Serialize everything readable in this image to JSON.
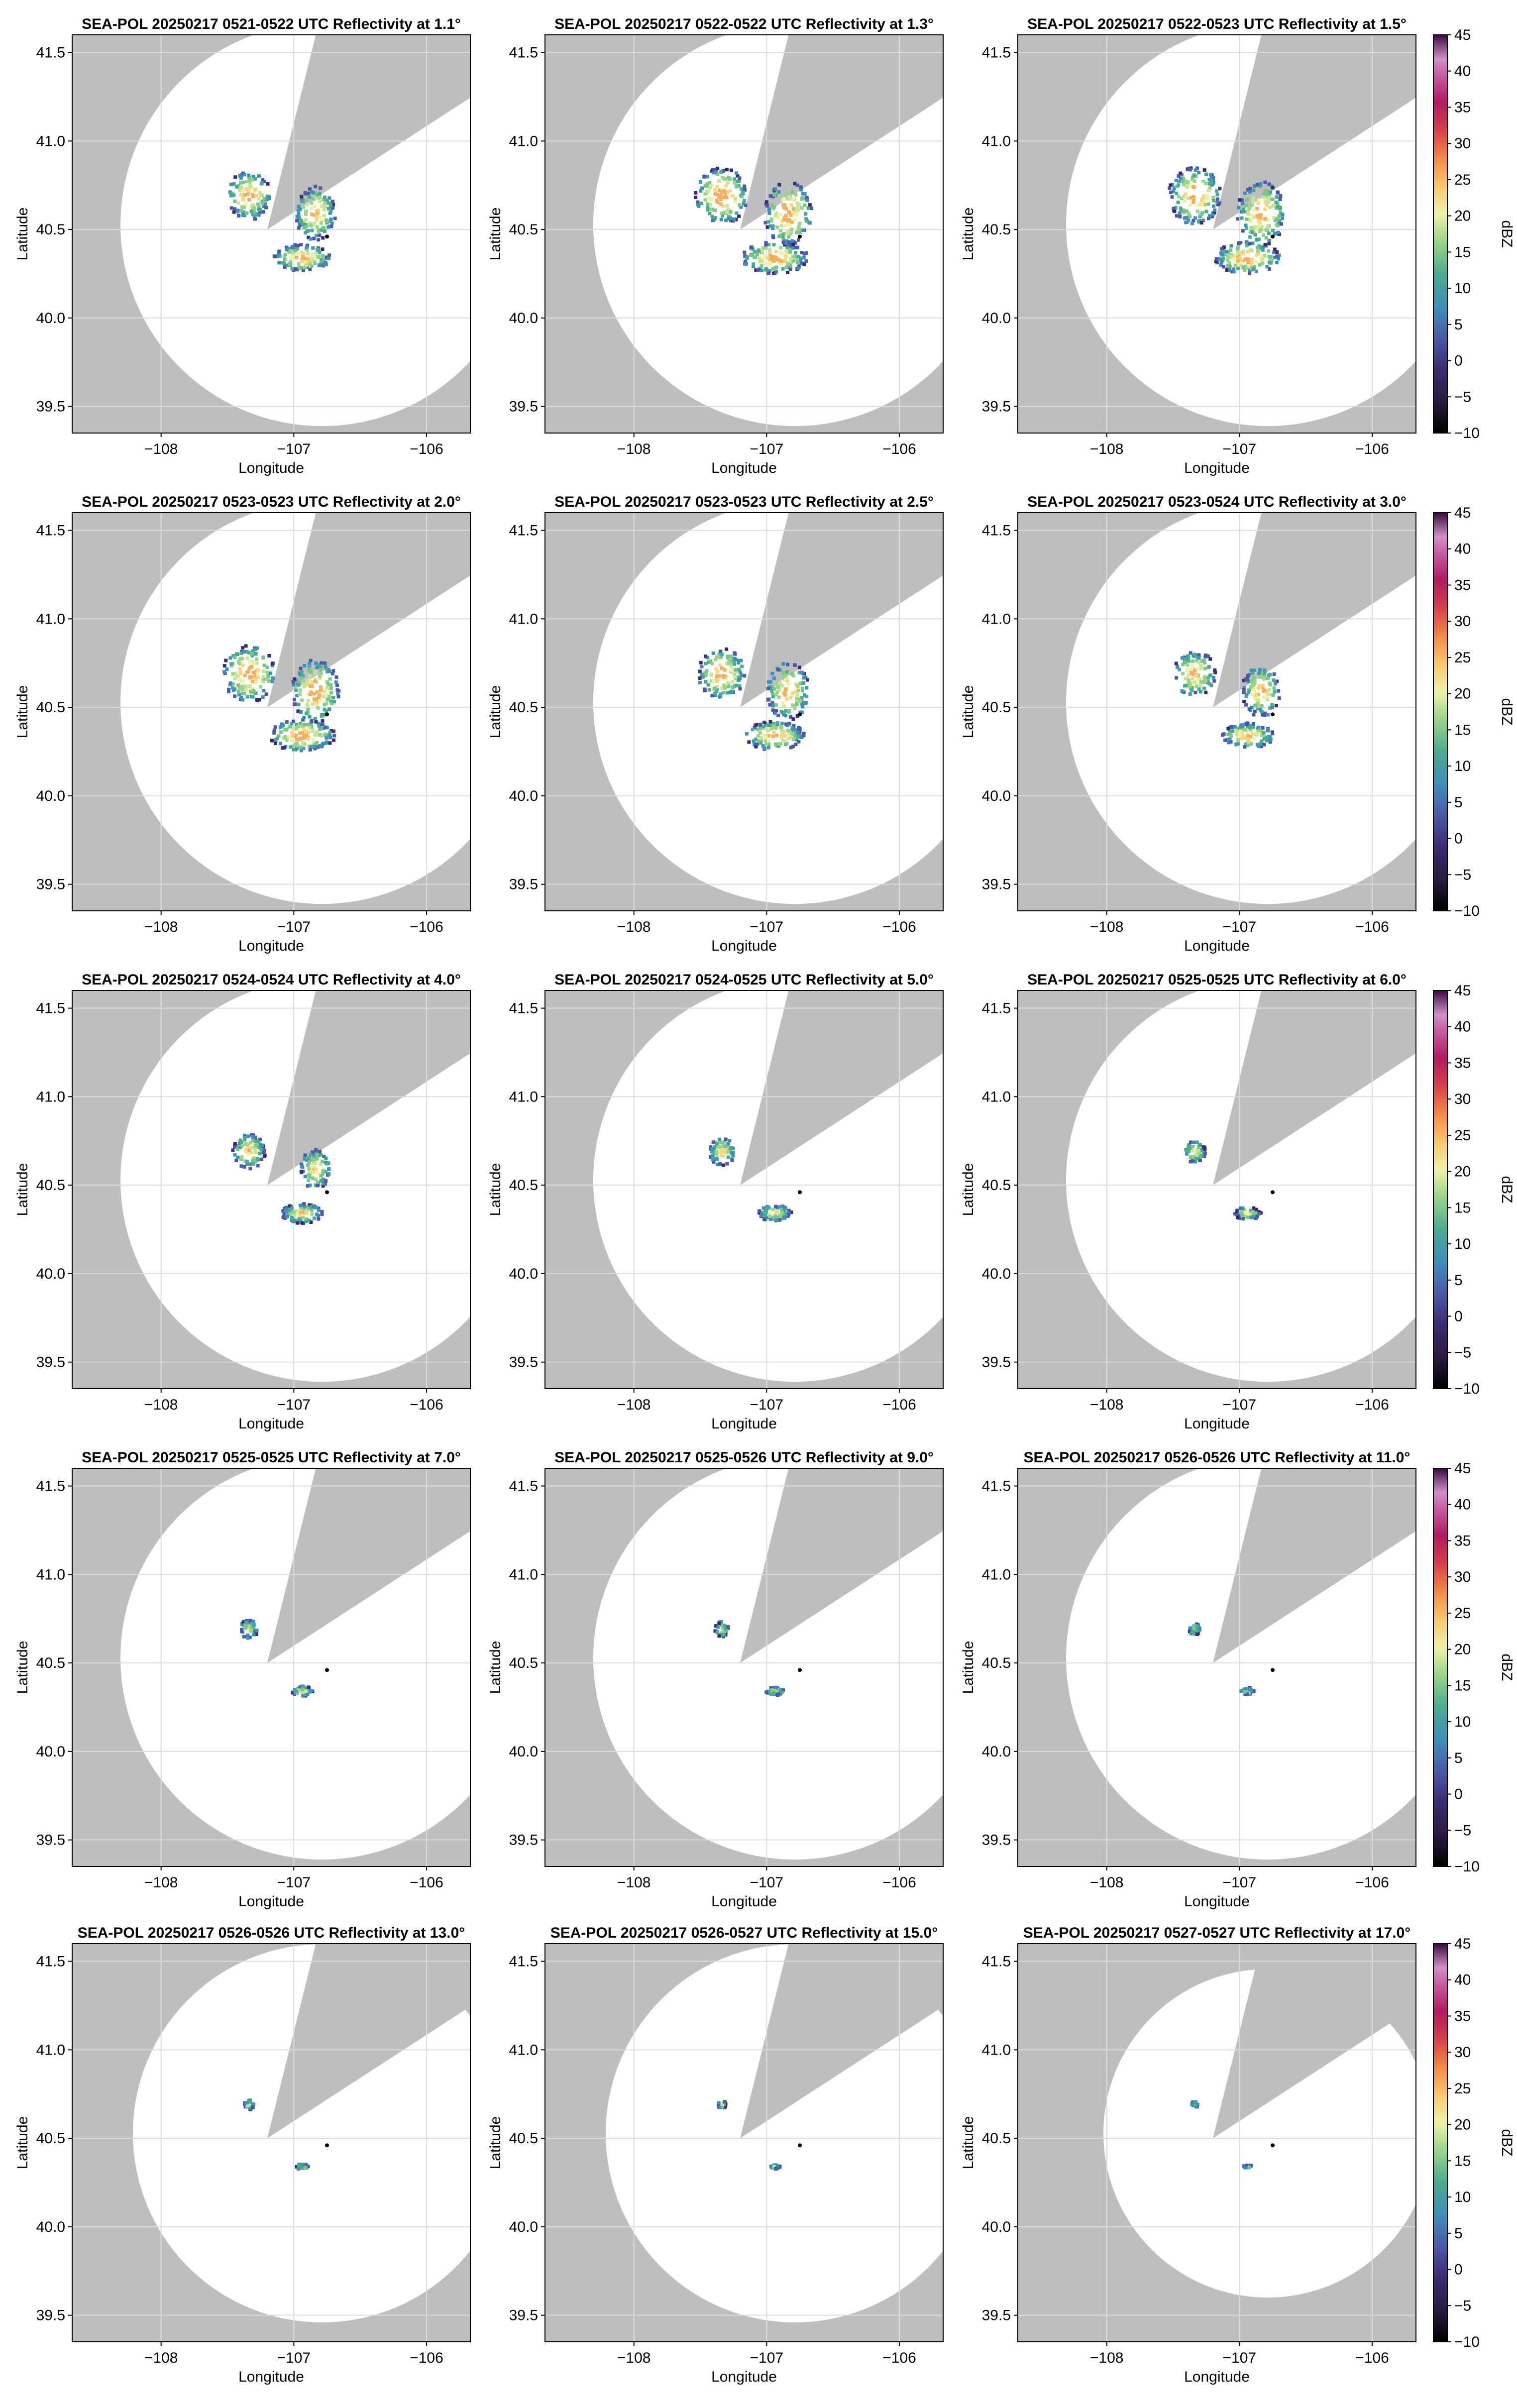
{
  "figure": {
    "panels": [
      {
        "title": "SEA-POL 20250217 0521-0522 UTC Reflectivity at 1.1°",
        "xlabel": "Longitude",
        "ylabel": "Latitude",
        "echo": 0.85
      },
      {
        "title": "SEA-POL 20250217 0522-0522 UTC Reflectivity at 1.3°",
        "xlabel": "Longitude",
        "ylabel": "Latitude",
        "echo": 1.0
      },
      {
        "title": "SEA-POL 20250217 0522-0523 UTC Reflectivity at 1.5°",
        "xlabel": "Longitude",
        "ylabel": "Latitude",
        "echo": 1.0
      },
      {
        "title": "SEA-POL 20250217 0523-0523 UTC Reflectivity at 2.0°",
        "xlabel": "Longitude",
        "ylabel": "Latitude",
        "echo": 1.0
      },
      {
        "title": "SEA-POL 20250217 0523-0523 UTC Reflectivity at 2.5°",
        "xlabel": "Longitude",
        "ylabel": "Latitude",
        "echo": 0.9
      },
      {
        "title": "SEA-POL 20250217 0523-0524 UTC Reflectivity at 3.0°",
        "xlabel": "Longitude",
        "ylabel": "Latitude",
        "echo": 0.8
      },
      {
        "title": "SEA-POL 20250217 0524-0524 UTC Reflectivity at 4.0°",
        "xlabel": "Longitude",
        "ylabel": "Latitude",
        "echo": 0.62
      },
      {
        "title": "SEA-POL 20250217 0524-0525 UTC Reflectivity at 5.0°",
        "xlabel": "Longitude",
        "ylabel": "Latitude",
        "echo": 0.5
      },
      {
        "title": "SEA-POL 20250217 0525-0525 UTC Reflectivity at 6.0°",
        "xlabel": "Longitude",
        "ylabel": "Latitude",
        "echo": 0.4
      },
      {
        "title": "SEA-POL 20250217 0525-0525 UTC Reflectivity at 7.0°",
        "xlabel": "Longitude",
        "ylabel": "Latitude",
        "echo": 0.33
      },
      {
        "title": "SEA-POL 20250217 0525-0526 UTC Reflectivity at 9.0°",
        "xlabel": "Longitude",
        "ylabel": "Latitude",
        "echo": 0.27
      },
      {
        "title": "SEA-POL 20250217 0526-0526 UTC Reflectivity at 11.0°",
        "xlabel": "Longitude",
        "ylabel": "Latitude",
        "echo": 0.22
      },
      {
        "title": "SEA-POL 20250217 0526-0526 UTC Reflectivity at 13.0°",
        "xlabel": "Longitude",
        "ylabel": "Latitude",
        "echo": 0.18
      },
      {
        "title": "SEA-POL 20250217 0526-0527 UTC Reflectivity at 15.0°",
        "xlabel": "Longitude",
        "ylabel": "Latitude",
        "echo": 0.15
      },
      {
        "title": "SEA-POL 20250217 0527-0527 UTC Reflectivity at 17.0°",
        "xlabel": "Longitude",
        "ylabel": "Latitude",
        "echo": 0.12
      }
    ],
    "colorbar": {
      "label": "dBZ",
      "ticks": [
        "45",
        "40",
        "35",
        "30",
        "25",
        "20",
        "15",
        "10",
        "5",
        "0",
        "−5",
        "−10"
      ],
      "range": [
        -10,
        45
      ]
    },
    "xtick_labels": [
      "−108",
      "−107",
      "−106"
    ],
    "ytick_labels": [
      "41.5",
      "41.0",
      "40.5",
      "40.0",
      "39.5"
    ]
  },
  "chart_data": {
    "type": "heatmap",
    "description_units": "degrees lon/lat",
    "xlabel": "Longitude",
    "ylabel": "Latitude",
    "xticks": [
      -108,
      -107,
      -106
    ],
    "yticks": [
      41.5,
      41.0,
      40.5,
      40.0,
      39.5
    ],
    "xlim": [
      -108.67,
      -105.67
    ],
    "ylim": [
      39.35,
      41.6
    ],
    "radar_location": [
      -107.2,
      40.5
    ],
    "marker_location": [
      -106.75,
      40.46
    ],
    "elevation_angles_deg": [
      1.1,
      1.3,
      1.5,
      2.0,
      2.5,
      3.0,
      4.0,
      5.0,
      6.0,
      7.0,
      9.0,
      11.0,
      13.0,
      15.0,
      17.0
    ],
    "colorbar_range_dBZ": [
      -10,
      45
    ],
    "colormap": [
      "#000000",
      "#3b2260",
      "#4b5fa8",
      "#3f94b8",
      "#5ab28a",
      "#a8d88a",
      "#eef0a4",
      "#f8c070",
      "#ef8040",
      "#d33b48",
      "#a01660",
      "#b04a90",
      "#d070b0",
      "#e0a0d0",
      "#3a0a40"
    ]
  }
}
